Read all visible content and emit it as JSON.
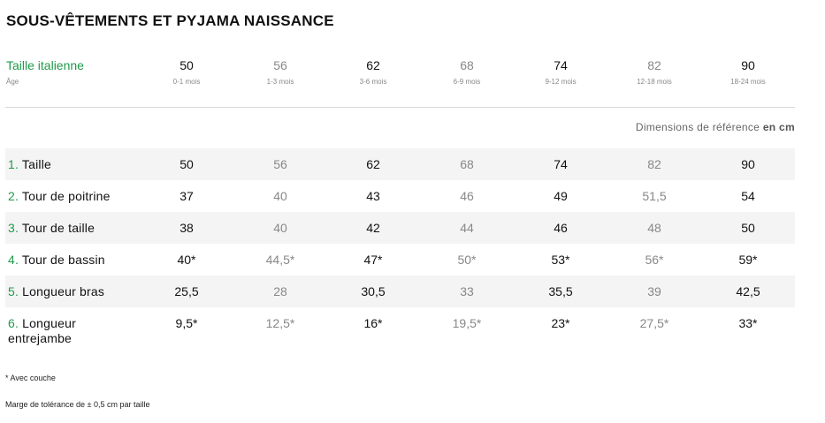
{
  "title": "SOUS-VÊTEMENTS ET PYJAMA NAISSANCE",
  "header": {
    "size_label": "Taille italienne",
    "age_label": "Âge",
    "sizes": [
      {
        "size": "50",
        "age": "0-1 mois"
      },
      {
        "size": "56",
        "age": "1-3 mois"
      },
      {
        "size": "62",
        "age": "3-6 mois"
      },
      {
        "size": "68",
        "age": "6-9 mois"
      },
      {
        "size": "74",
        "age": "9-12 mois"
      },
      {
        "size": "82",
        "age": "12-18 mois"
      },
      {
        "size": "90",
        "age": "18-24 mois"
      }
    ]
  },
  "reference_note": {
    "text": "Dimensions de référence",
    "unit": "en cm"
  },
  "rows": [
    {
      "number": "1.",
      "label": "Taille",
      "values": [
        "50",
        "56",
        "62",
        "68",
        "74",
        "82",
        "90"
      ]
    },
    {
      "number": "2.",
      "label": "Tour de poitrine",
      "values": [
        "37",
        "40",
        "43",
        "46",
        "49",
        "51,5",
        "54"
      ]
    },
    {
      "number": "3.",
      "label": "Tour de taille",
      "values": [
        "38",
        "40",
        "42",
        "44",
        "46",
        "48",
        "50"
      ]
    },
    {
      "number": "4.",
      "label": "Tour de bassin",
      "values": [
        "40*",
        "44,5*",
        "47*",
        "50*",
        "53*",
        "56*",
        "59*"
      ]
    },
    {
      "number": "5.",
      "label": "Longueur bras",
      "values": [
        "25,5",
        "28",
        "30,5",
        "33",
        "35,5",
        "39",
        "42,5"
      ]
    },
    {
      "number": "6.",
      "label": "Longueur entrejambe",
      "values": [
        "9,5*",
        "12,5*",
        "16*",
        "19,5*",
        "23*",
        "27,5*",
        "33*"
      ]
    }
  ],
  "footnotes": {
    "with_diaper": "* Avec couche",
    "tolerance": "Marge de tolérance de ± 0,5 cm par taille"
  },
  "colors": {
    "accent": "#1e9b4a",
    "muted": "#888888",
    "row_shade": "#f4f4f4"
  }
}
